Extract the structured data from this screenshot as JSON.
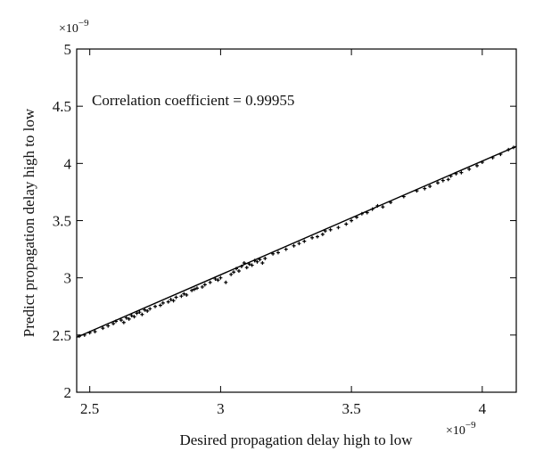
{
  "chart_data": {
    "type": "scatter",
    "title": "",
    "xlabel": "Desired propagation delay high to low",
    "ylabel": "Predict propagation delay high to low",
    "x_multiplier_label": "×10",
    "x_multiplier_exp": "−9",
    "y_multiplier_label": "×10",
    "y_multiplier_exp": "−9",
    "xlim": [
      2.45,
      4.13
    ],
    "ylim": [
      2,
      5
    ],
    "x_ticks": [
      2.5,
      3,
      3.5,
      4
    ],
    "x_tick_labels": [
      "2.5",
      "3",
      "3.5",
      "4"
    ],
    "y_ticks": [
      2,
      2.5,
      3,
      3.5,
      4,
      4.5,
      5
    ],
    "y_tick_labels": [
      "2",
      "2.5",
      "3",
      "3.5",
      "4",
      "4.5",
      "5"
    ],
    "grid": false,
    "annotation": "Correlation coefficient = 0.99955",
    "fit_line": {
      "x": [
        2.45,
        4.13
      ],
      "y": [
        2.48,
        4.15
      ]
    },
    "series": [
      {
        "points": [
          [
            2.46,
            2.49
          ],
          [
            2.48,
            2.5
          ],
          [
            2.5,
            2.52
          ],
          [
            2.52,
            2.53
          ],
          [
            2.55,
            2.56
          ],
          [
            2.57,
            2.58
          ],
          [
            2.59,
            2.6
          ],
          [
            2.6,
            2.62
          ],
          [
            2.62,
            2.63
          ],
          [
            2.63,
            2.61
          ],
          [
            2.64,
            2.65
          ],
          [
            2.65,
            2.64
          ],
          [
            2.66,
            2.67
          ],
          [
            2.67,
            2.66
          ],
          [
            2.68,
            2.69
          ],
          [
            2.69,
            2.7
          ],
          [
            2.7,
            2.68
          ],
          [
            2.71,
            2.72
          ],
          [
            2.72,
            2.71
          ],
          [
            2.73,
            2.73
          ],
          [
            2.75,
            2.75
          ],
          [
            2.77,
            2.76
          ],
          [
            2.78,
            2.78
          ],
          [
            2.8,
            2.79
          ],
          [
            2.81,
            2.81
          ],
          [
            2.82,
            2.8
          ],
          [
            2.83,
            2.83
          ],
          [
            2.85,
            2.84
          ],
          [
            2.86,
            2.86
          ],
          [
            2.87,
            2.85
          ],
          [
            2.89,
            2.89
          ],
          [
            2.9,
            2.9
          ],
          [
            2.91,
            2.91
          ],
          [
            2.93,
            2.92
          ],
          [
            2.94,
            2.94
          ],
          [
            2.96,
            2.96
          ],
          [
            2.98,
            2.99
          ],
          [
            2.99,
            2.98
          ],
          [
            3.0,
            3.0
          ],
          [
            3.02,
            2.96
          ],
          [
            3.04,
            3.03
          ],
          [
            3.05,
            3.05
          ],
          [
            3.06,
            3.08
          ],
          [
            3.07,
            3.06
          ],
          [
            3.08,
            3.1
          ],
          [
            3.09,
            3.13
          ],
          [
            3.1,
            3.09
          ],
          [
            3.11,
            3.12
          ],
          [
            3.12,
            3.11
          ],
          [
            3.13,
            3.15
          ],
          [
            3.14,
            3.14
          ],
          [
            3.15,
            3.16
          ],
          [
            3.16,
            3.13
          ],
          [
            3.17,
            3.17
          ],
          [
            3.2,
            3.21
          ],
          [
            3.22,
            3.22
          ],
          [
            3.25,
            3.25
          ],
          [
            3.28,
            3.28
          ],
          [
            3.3,
            3.3
          ],
          [
            3.32,
            3.32
          ],
          [
            3.35,
            3.35
          ],
          [
            3.37,
            3.36
          ],
          [
            3.39,
            3.38
          ],
          [
            3.4,
            3.41
          ],
          [
            3.42,
            3.42
          ],
          [
            3.45,
            3.44
          ],
          [
            3.48,
            3.47
          ],
          [
            3.5,
            3.5
          ],
          [
            3.52,
            3.53
          ],
          [
            3.54,
            3.56
          ],
          [
            3.56,
            3.57
          ],
          [
            3.58,
            3.6
          ],
          [
            3.6,
            3.63
          ],
          [
            3.62,
            3.62
          ],
          [
            3.65,
            3.66
          ],
          [
            3.7,
            3.71
          ],
          [
            3.75,
            3.76
          ],
          [
            3.78,
            3.78
          ],
          [
            3.8,
            3.8
          ],
          [
            3.83,
            3.83
          ],
          [
            3.85,
            3.85
          ],
          [
            3.87,
            3.86
          ],
          [
            3.88,
            3.89
          ],
          [
            3.9,
            3.91
          ],
          [
            3.92,
            3.92
          ],
          [
            3.95,
            3.95
          ],
          [
            3.98,
            3.98
          ],
          [
            4.0,
            4.01
          ],
          [
            4.04,
            4.05
          ],
          [
            4.07,
            4.08
          ],
          [
            4.1,
            4.12
          ],
          [
            4.12,
            4.14
          ]
        ]
      }
    ]
  }
}
